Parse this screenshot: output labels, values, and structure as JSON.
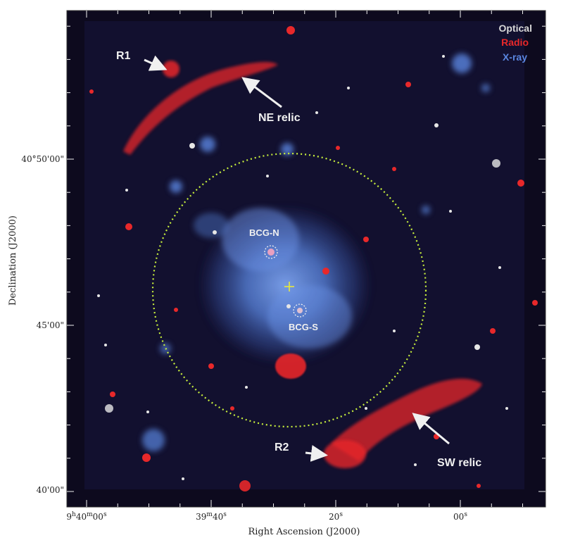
{
  "axes": {
    "xlabel": "Right Ascension (J2000)",
    "ylabel": "Declination (J2000)",
    "x_ticks": [
      {
        "main": "9",
        "sup1": "h",
        "mid": "40",
        "sup2": "m",
        "tail": "00",
        "sup3": "s"
      },
      {
        "main": "39",
        "sup1": "m",
        "mid": "40",
        "sup2": "s",
        "tail": "",
        "sup3": ""
      },
      {
        "main": "20",
        "sup1": "s",
        "mid": "",
        "sup2": "",
        "tail": "",
        "sup3": ""
      },
      {
        "main": "00",
        "sup1": "s",
        "mid": "",
        "sup2": "",
        "tail": "",
        "sup3": ""
      }
    ],
    "y_ticks": [
      "40°50'00\"",
      "45'00\"",
      "40'00\""
    ]
  },
  "legend": {
    "items": [
      {
        "label": "Optical",
        "color": "#d8d8d8"
      },
      {
        "label": "Radio",
        "color": "#e8282a"
      },
      {
        "label": "X-ray",
        "color": "#5a86e0"
      }
    ]
  },
  "annotations": {
    "r1": "R1",
    "ne_relic": "NE relic",
    "bcg_n": "BCG-N",
    "bcg_s": "BCG-S",
    "r2": "R2",
    "sw_relic": "SW relic"
  },
  "colors": {
    "sky": "#0d0a1e",
    "radio": "#e8282a",
    "xray": "#5a86e0",
    "circle": "#c8f03c",
    "center_marker": "#e8e83c"
  }
}
